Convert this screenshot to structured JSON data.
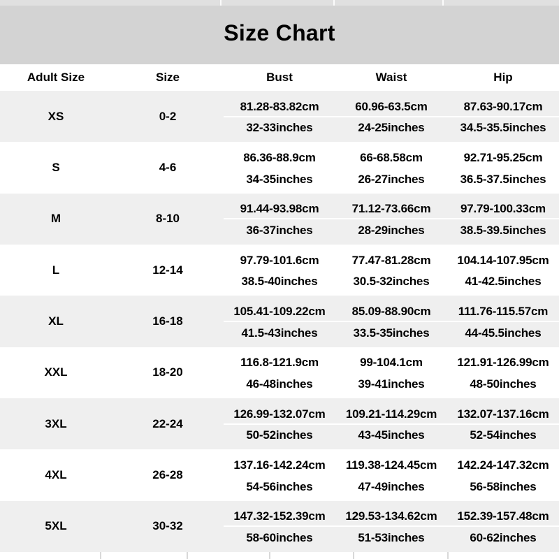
{
  "colors": {
    "title_band_bg": "#d3d3d3",
    "alt_row_bg": "#efefef",
    "row_bg": "#ffffff",
    "text": "#000000"
  },
  "chart_data": {
    "type": "table",
    "title": "Size Chart",
    "columns": [
      "Adult Size",
      "Size",
      "Bust",
      "Waist",
      "Hip"
    ],
    "rows": [
      {
        "size": "XS",
        "size_range": "0-2",
        "bust_cm": "81.28-83.82cm",
        "bust_inches": "32-33inches",
        "waist_cm": "60.96-63.5cm",
        "waist_inches": "24-25inches",
        "hip_cm": "87.63-90.17cm",
        "hip_inches": "34.5-35.5inches"
      },
      {
        "size": "S",
        "size_range": "4-6",
        "bust_cm": "86.36-88.9cm",
        "bust_inches": "34-35inches",
        "waist_cm": "66-68.58cm",
        "waist_inches": "26-27inches",
        "hip_cm": "92.71-95.25cm",
        "hip_inches": "36.5-37.5inches"
      },
      {
        "size": "M",
        "size_range": "8-10",
        "bust_cm": "91.44-93.98cm",
        "bust_inches": "36-37inches",
        "waist_cm": "71.12-73.66cm",
        "waist_inches": "28-29inches",
        "hip_cm": "97.79-100.33cm",
        "hip_inches": "38.5-39.5inches"
      },
      {
        "size": "L",
        "size_range": "12-14",
        "bust_cm": "97.79-101.6cm",
        "bust_inches": "38.5-40inches",
        "waist_cm": "77.47-81.28cm",
        "waist_inches": "30.5-32inches",
        "hip_cm": "104.14-107.95cm",
        "hip_inches": "41-42.5inches"
      },
      {
        "size": "XL",
        "size_range": "16-18",
        "bust_cm": "105.41-109.22cm",
        "bust_inches": "41.5-43inches",
        "waist_cm": "85.09-88.90cm",
        "waist_inches": "33.5-35inches",
        "hip_cm": "111.76-115.57cm",
        "hip_inches": "44-45.5inches"
      },
      {
        "size": "XXL",
        "size_range": "18-20",
        "bust_cm": "116.8-121.9cm",
        "bust_inches": "46-48inches",
        "waist_cm": "99-104.1cm",
        "waist_inches": "39-41inches",
        "hip_cm": "121.91-126.99cm",
        "hip_inches": "48-50inches"
      },
      {
        "size": "3XL",
        "size_range": "22-24",
        "bust_cm": "126.99-132.07cm",
        "bust_inches": "50-52inches",
        "waist_cm": "109.21-114.29cm",
        "waist_inches": "43-45inches",
        "hip_cm": "132.07-137.16cm",
        "hip_inches": "52-54inches"
      },
      {
        "size": "4XL",
        "size_range": "26-28",
        "bust_cm": "137.16-142.24cm",
        "bust_inches": "54-56inches",
        "waist_cm": "119.38-124.45cm",
        "waist_inches": "47-49inches",
        "hip_cm": "142.24-147.32cm",
        "hip_inches": "56-58inches"
      },
      {
        "size": "5XL",
        "size_range": "30-32",
        "bust_cm": "147.32-152.39cm",
        "bust_inches": "58-60inches",
        "waist_cm": "129.53-134.62cm",
        "waist_inches": "51-53inches",
        "hip_cm": "152.39-157.48cm",
        "hip_inches": "60-62inches"
      }
    ]
  }
}
